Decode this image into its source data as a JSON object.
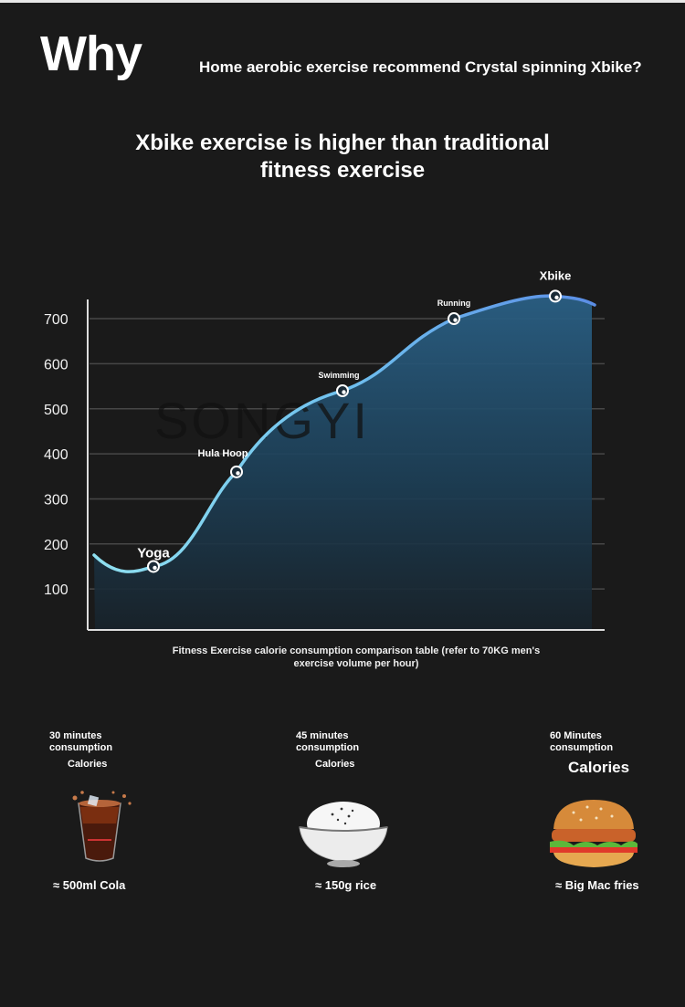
{
  "header": {
    "why": "Why",
    "subheadline": "Home aerobic exercise recommend Crystal spinning Xbike?",
    "headline_line1": "Xbike exercise is higher than traditional",
    "headline_line2": "fitness exercise"
  },
  "watermark": "SONGYI",
  "chart_data": {
    "type": "area",
    "x": [
      "Yoga",
      "Hula Hoop",
      "Swimming",
      "Running",
      "Xbike"
    ],
    "values": [
      150,
      360,
      540,
      700,
      750
    ],
    "yticks": [
      100,
      200,
      300,
      400,
      500,
      600,
      700
    ],
    "ylim": [
      0,
      780
    ],
    "grid": true,
    "caption_line1": "Fitness Exercise calorie consumption comparison table (refer to 70KG men's",
    "caption_line2": "exercise volume per hour)"
  },
  "foods": [
    {
      "duration_line1": "30 minutes",
      "duration_line2": "consumption",
      "calories_label": "Calories",
      "equivalent": "≈ 500ml Cola",
      "icon": "cola-glass-icon"
    },
    {
      "duration_line1": "45 minutes",
      "duration_line2": "consumption",
      "calories_label": "Calories",
      "equivalent": "≈ 150g rice",
      "icon": "rice-bowl-icon"
    },
    {
      "duration_line1": "60 Minutes",
      "duration_line2": "consumption",
      "calories_label": "Calories",
      "equivalent": "≈ Big Mac fries",
      "icon": "burger-icon"
    }
  ],
  "colors": {
    "background": "#1a1a1a",
    "curve": "#6fb2f0",
    "area_top": "#2a5f84",
    "grid": "#4a4a4a"
  }
}
